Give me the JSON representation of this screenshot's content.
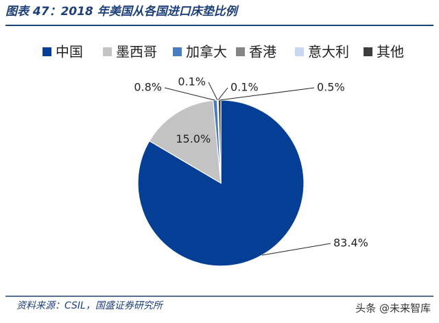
{
  "chart_data": {
    "type": "pie",
    "title": "图表 47：2018 年美国从各国进口床垫比例",
    "categories": [
      "中国",
      "墨西哥",
      "加拿大",
      "香港",
      "意大利",
      "其他"
    ],
    "values": [
      83.4,
      15.0,
      0.8,
      0.1,
      0.1,
      0.5
    ],
    "value_labels": [
      "83.4%",
      "15.0%",
      "0.8%",
      "0.1%",
      "0.1%",
      "0.5%"
    ],
    "colors": [
      "#053f95",
      "#c3c3c3",
      "#4a7cc2",
      "#858585",
      "#c6d9f0",
      "#3d3d3d"
    ],
    "legend": "top",
    "source": "资料来源：CSIL，国盛证券研究所",
    "watermark": "头条 @未来智库"
  }
}
